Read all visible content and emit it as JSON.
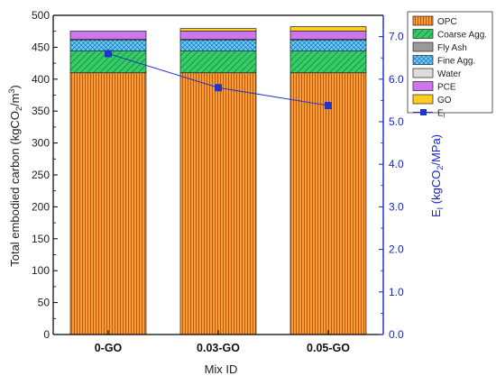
{
  "chart_data": {
    "type": "bar",
    "stacked": true,
    "categories": [
      "0-GO",
      "0.03-GO",
      "0.05-GO"
    ],
    "series": [
      {
        "name": "OPC",
        "values": [
          410,
          410,
          410
        ],
        "color": "#FF9933",
        "pattern": "vertical-lines"
      },
      {
        "name": "Coarse Agg.",
        "values": [
          34,
          34,
          34
        ],
        "color": "#33CC66",
        "pattern": "diagonal-lines"
      },
      {
        "name": "Fly Ash",
        "values": [
          0,
          0,
          0
        ],
        "color": "#999999",
        "pattern": "none"
      },
      {
        "name": "Fine Agg.",
        "values": [
          18,
          18,
          18
        ],
        "color": "#66CCFF",
        "pattern": "crosshatch"
      },
      {
        "name": "Water",
        "values": [
          0.3,
          0.3,
          0.3
        ],
        "color": "#DDDDDD",
        "pattern": "none"
      },
      {
        "name": "PCE",
        "values": [
          13,
          13,
          13
        ],
        "color": "#CC77EE",
        "pattern": "none"
      },
      {
        "name": "GO",
        "values": [
          0,
          4,
          7
        ],
        "color": "#FFCC22",
        "pattern": "none"
      }
    ],
    "line_series": {
      "name": "E_I",
      "values": [
        6.6,
        5.8,
        5.38
      ],
      "color": "#2233CC",
      "axis": "right",
      "marker": "square"
    },
    "xlabel": "Mix ID",
    "ylabel": "Total embodied carbon (kgCO2/m3)",
    "y2label": "EI (kgCO2/MPa)",
    "ylim": [
      0,
      500
    ],
    "y2lim": [
      0,
      7.5
    ],
    "yticks": [
      0,
      50,
      100,
      150,
      200,
      250,
      300,
      350,
      400,
      450,
      500
    ],
    "y2ticks": [
      "0.0",
      "1.0",
      "2.0",
      "3.0",
      "4.0",
      "5.0",
      "6.0",
      "7.0"
    ],
    "legend_position": "top-right",
    "grid": false
  }
}
